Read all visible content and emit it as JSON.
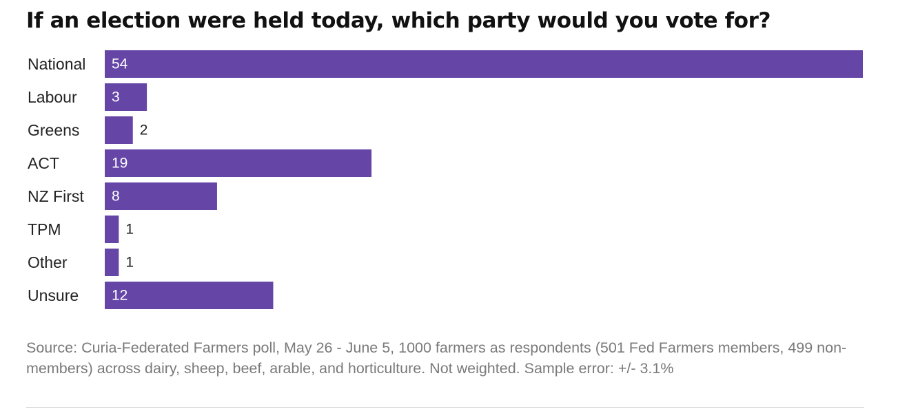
{
  "chart_data": {
    "type": "bar",
    "orientation": "horizontal",
    "title": "If an election were held today, which party would you vote for?",
    "categories": [
      "National",
      "Labour",
      "Greens",
      "ACT",
      "NZ First",
      "TPM",
      "Other",
      "Unsure"
    ],
    "values": [
      54,
      3,
      2,
      19,
      8,
      1,
      1,
      12
    ],
    "value_labels": [
      "54",
      "3",
      "2",
      "19",
      "8",
      "1",
      "1",
      "12"
    ],
    "xlim": [
      0,
      54
    ],
    "grid": false,
    "bar_color": "#6546a6",
    "source": "Source: Curia-Federated Farmers poll, May 26 - June 5, 1000 farmers as respondents (501 Fed Farmers members, 499 non-members) across dairy, sheep, beef, arable, and horticulture. Not weighted. Sample error: +/- 3.1%"
  }
}
